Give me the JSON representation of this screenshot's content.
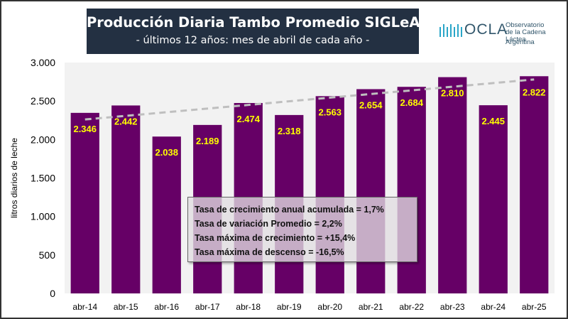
{
  "header": {
    "title": "Producción Diaria Tambo Promedio SIGLeA",
    "subtitle": "- últimos 12 años: mes de abril de cada año -"
  },
  "logo": {
    "name": "OCLA",
    "line1": "Observatorio",
    "line2": "de la Cadena Láctea",
    "line3": "Argentina"
  },
  "chart_data": {
    "type": "bar",
    "title": "Producción Diaria Tambo Promedio SIGLeA",
    "subtitle": "- últimos 12 años: mes de abril de cada año -",
    "xlabel": "",
    "ylabel": "litros diarios de leche",
    "categories": [
      "abr-14",
      "abr-15",
      "abr-16",
      "abr-17",
      "abr-18",
      "abr-19",
      "abr-20",
      "abr-21",
      "abr-22",
      "abr-23",
      "abr-24",
      "abr-25"
    ],
    "values": [
      2346,
      2442,
      2038,
      2189,
      2474,
      2318,
      2563,
      2654,
      2684,
      2810,
      2445,
      2822
    ],
    "value_labels": [
      "2.346",
      "2.442",
      "2.038",
      "2.189",
      "2.474",
      "2.318",
      "2.563",
      "2.654",
      "2.684",
      "2.810",
      "2.445",
      "2.822"
    ],
    "ylim": [
      0,
      3000
    ],
    "yticks": [
      0,
      500,
      1000,
      1500,
      2000,
      2500,
      3000
    ],
    "ytick_labels": [
      "0",
      "500",
      "1.000",
      "1.500",
      "2.000",
      "2.500",
      "3.000"
    ],
    "trendline": {
      "style": "dashed",
      "start": 2260,
      "end": 2780
    },
    "colors": {
      "bar": "#660066",
      "plot_background": "#f2f2f2",
      "label": "#ffff00",
      "trend": "#bfbfbf"
    },
    "grid": false,
    "legend": "none",
    "annotations": [
      "Tasa de crecimiento anual acumulada = 1,7%",
      "Tasa de variación Promedio = 2,2%",
      "Tasa máxima de crecimiento = +15,4%",
      "Tasa máxima de descenso = -16,5%"
    ]
  }
}
